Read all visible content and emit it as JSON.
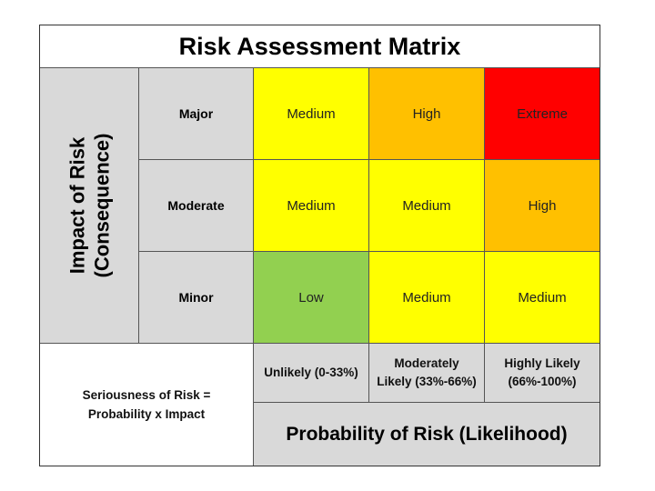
{
  "title": "Risk Assessment Matrix",
  "impact_axis": {
    "line1": "Impact of Risk",
    "line2": "(Consequence)"
  },
  "impact_levels": [
    "Major",
    "Moderate",
    "Minor"
  ],
  "probability_levels": [
    {
      "line1": "Unlikely (0-33%)",
      "line2": ""
    },
    {
      "line1": "Moderately",
      "line2": "Likely (33%-66%)"
    },
    {
      "line1": "Highly Likely",
      "line2": "(66%-100%)"
    }
  ],
  "probability_axis": "Probability of Risk (Likelihood)",
  "formula": {
    "line1": "Seriousness of Risk =",
    "line2": "Probability x Impact"
  },
  "grid": [
    [
      "Medium",
      "High",
      "Extreme"
    ],
    [
      "Medium",
      "Medium",
      "High"
    ],
    [
      "Low",
      "Medium",
      "Medium"
    ]
  ],
  "colors": {
    "Low": "#92d050",
    "Medium": "#ffff00",
    "High": "#ffc000",
    "Extreme": "#ff0000",
    "header_gray": "#d9d9d9"
  }
}
